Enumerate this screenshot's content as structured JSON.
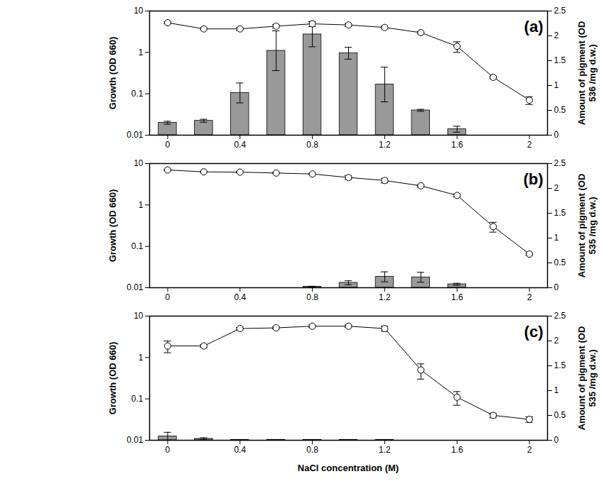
{
  "chart_data": [
    {
      "type": "bar_line",
      "title": "(a)",
      "x": [
        0,
        0.2,
        0.4,
        0.6,
        0.8,
        1.0,
        1.2,
        1.4,
        1.6,
        1.8,
        2.0
      ],
      "xlim": [
        -0.1,
        2.1
      ],
      "xticks": [
        0,
        0.4,
        0.8,
        1.2,
        1.6,
        2
      ],
      "ylabel": "Growth (OD 660)",
      "ylim": [
        0.01,
        10
      ],
      "yticks": [
        0.01,
        0.1,
        1,
        10
      ],
      "log": "y",
      "y2label": "Amount of pigment (OD 536 /mg d.w.)",
      "y2lim": [
        0,
        2.5
      ],
      "y2ticks": [
        0,
        0.5,
        1,
        1.5,
        2,
        2.5
      ],
      "series": [
        {
          "type": "line",
          "marker": "circle",
          "color": "#000000",
          "values": [
            5.2,
            3.7,
            3.7,
            4.3,
            4.9,
            4.6,
            4.0,
            3.0,
            1.4,
            0.25,
            0.07
          ],
          "errors": [
            0.3,
            0.2,
            0.3,
            0.4,
            0.7,
            0.4,
            0.3,
            0.2,
            0.4,
            0.02,
            0.015
          ]
        },
        {
          "type": "bar",
          "axis": "y2",
          "color": "#999999",
          "values": [
            0.25,
            0.29,
            0.85,
            1.7,
            2.03,
            1.65,
            1.02,
            0.5,
            0.12,
            0,
            0
          ],
          "errors": [
            0.03,
            0.03,
            0.2,
            0.4,
            0.25,
            0.12,
            0.35,
            0.02,
            0.06,
            0,
            0
          ]
        }
      ]
    },
    {
      "type": "bar_line",
      "title": "(b)",
      "x": [
        0,
        0.2,
        0.4,
        0.6,
        0.8,
        1.0,
        1.2,
        1.4,
        1.6,
        1.8,
        2.0
      ],
      "xlim": [
        -0.1,
        2.1
      ],
      "xticks": [
        0,
        0.4,
        0.8,
        1.2,
        1.6,
        2
      ],
      "ylabel": "Growth (OD 660)",
      "ylim": [
        0.01,
        10
      ],
      "yticks": [
        0.01,
        0.1,
        1,
        10
      ],
      "log": "y",
      "y2label": "Amount of pigment (OD 535 /mg d.w.)",
      "y2lim": [
        0,
        2.5
      ],
      "y2ticks": [
        0,
        0.5,
        1,
        1.5,
        2,
        2.5
      ],
      "series": [
        {
          "type": "line",
          "marker": "circle",
          "color": "#000000",
          "values": [
            7.0,
            6.3,
            6.2,
            5.9,
            5.6,
            4.6,
            3.9,
            2.9,
            1.7,
            0.3,
            0.065
          ],
          "errors": [
            0.3,
            0.2,
            0.2,
            0.2,
            0.2,
            0.5,
            0.5,
            0.2,
            0.15,
            0.08,
            0.005
          ]
        },
        {
          "type": "bar",
          "axis": "y2",
          "color": "#999999",
          "values": [
            0,
            0,
            0,
            0,
            0.02,
            0.1,
            0.22,
            0.21,
            0.07,
            0,
            0
          ],
          "errors": [
            0,
            0,
            0,
            0,
            0.01,
            0.04,
            0.1,
            0.1,
            0.02,
            0,
            0
          ]
        }
      ]
    },
    {
      "type": "bar_line",
      "title": "(c)",
      "x": [
        0,
        0.2,
        0.4,
        0.6,
        0.8,
        1.0,
        1.2,
        1.4,
        1.6,
        1.8,
        2.0
      ],
      "xlim": [
        -0.1,
        2.1
      ],
      "xticks": [
        0,
        0.4,
        0.8,
        1.2,
        1.6,
        2
      ],
      "xlabel": "NaCl concentration (M)",
      "ylabel": "Growth (OD 660)",
      "ylim": [
        0.01,
        10
      ],
      "yticks": [
        0.01,
        0.1,
        1,
        10
      ],
      "log": "y",
      "y2label": "Amount of pigment (OD 535 /mg d.w.)",
      "y2lim": [
        0,
        2.5
      ],
      "y2ticks": [
        0,
        0.5,
        1,
        1.5,
        2,
        2.5
      ],
      "series": [
        {
          "type": "line",
          "marker": "circle",
          "color": "#000000",
          "values": [
            1.9,
            1.9,
            5.0,
            5.2,
            5.7,
            5.7,
            5.0,
            0.5,
            0.11,
            0.04,
            0.032
          ],
          "errors": [
            0.6,
            0.15,
            0.3,
            0.3,
            0.4,
            0.4,
            0.7,
            0.2,
            0.04,
            0.005,
            0.005
          ]
        },
        {
          "type": "bar",
          "axis": "y2",
          "color": "#999999",
          "values": [
            0.08,
            0.03,
            0.01,
            0.01,
            0.01,
            0.01,
            0.01,
            0,
            0,
            0,
            0
          ],
          "errors": [
            0.08,
            0.02,
            0,
            0,
            0,
            0,
            0,
            0,
            0,
            0,
            0
          ]
        }
      ]
    }
  ]
}
